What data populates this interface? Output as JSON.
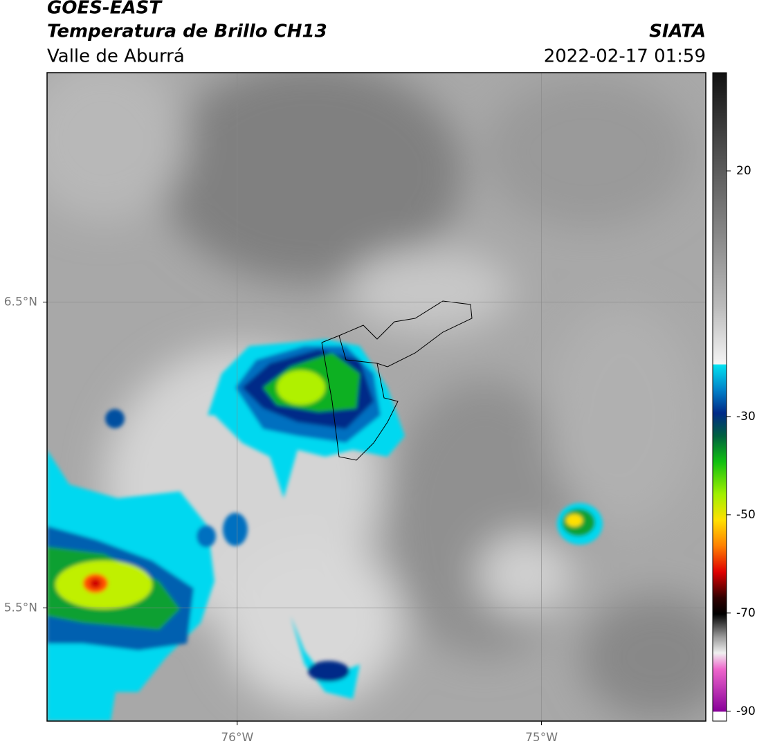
{
  "header": {
    "title": "GOES-EAST",
    "subtitle": "Temperatura de Brillo CH13",
    "region": "Valle de Aburrá",
    "source": "SIATA",
    "datetime": "2022-02-17 01:59"
  },
  "map": {
    "xlim": [
      -76.625,
      -74.46
    ],
    "ylim": [
      5.13,
      7.25
    ],
    "xticks": [
      {
        "value": -76,
        "label": "76°W"
      },
      {
        "value": -75,
        "label": "75°W"
      }
    ],
    "yticks": [
      {
        "value": 6.5,
        "label": "6.5°N"
      },
      {
        "value": 5.5,
        "label": "5.5°N"
      }
    ],
    "grid": true
  },
  "colorbar": {
    "lim": [
      -92,
      40
    ],
    "ticks": [
      20,
      -30,
      -50,
      -70,
      -90
    ]
  }
}
